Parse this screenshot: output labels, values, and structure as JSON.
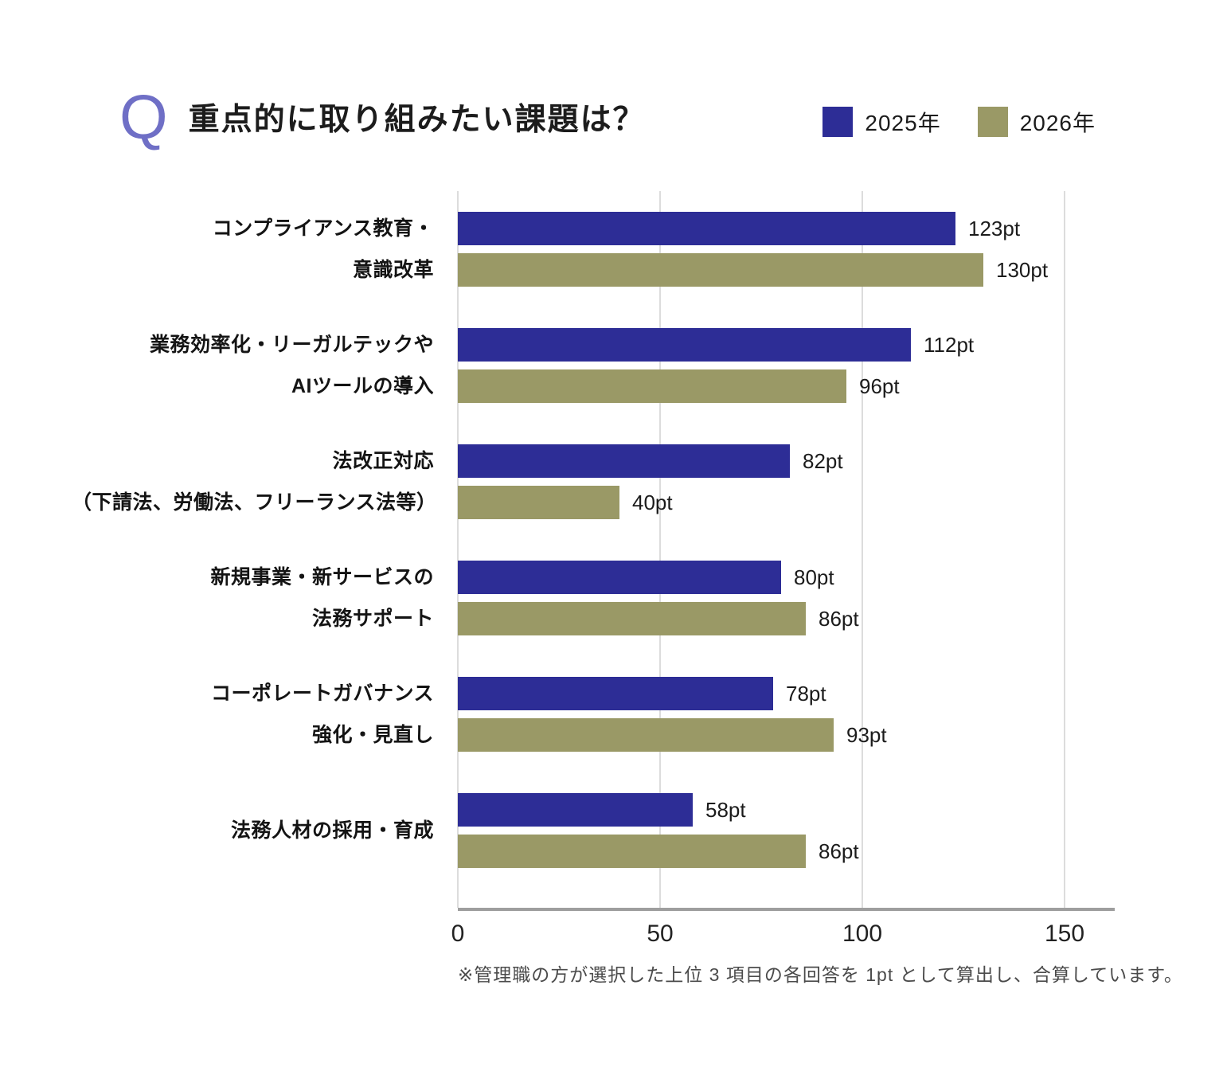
{
  "header": {
    "q_mark": "Q",
    "title": "重点的に取り組みたい課題は？"
  },
  "legend": [
    {
      "label": "2025年",
      "color": "#2D2D96"
    },
    {
      "label": "2026年",
      "color": "#9A9966"
    }
  ],
  "chart_data": {
    "type": "bar",
    "orientation": "horizontal",
    "title": "重点的に取り組みたい課題は？",
    "categories": [
      [
        "コンプライアンス教育・",
        "意識改革"
      ],
      [
        "業務効率化・リーガルテックや",
        "AIツールの導入"
      ],
      [
        "法改正対応",
        "（下請法、労働法、フリーランス法等）"
      ],
      [
        "新規事業・新サービスの",
        "法務サポート"
      ],
      [
        "コーポレートガバナンス",
        "強化・見直し"
      ],
      [
        "法務人材の採用・育成"
      ]
    ],
    "series": [
      {
        "name": "2025年",
        "color": "#2D2D96",
        "values": [
          123,
          112,
          82,
          80,
          78,
          58
        ]
      },
      {
        "name": "2026年",
        "color": "#9A9966",
        "values": [
          130,
          96,
          40,
          86,
          93,
          86
        ]
      }
    ],
    "unit": "pt",
    "xticks": [
      0,
      50,
      100,
      150
    ],
    "xmax": 162.4,
    "xlabel": "",
    "ylabel": "",
    "grid": "vertical",
    "legend_position": "top-right"
  },
  "footnote": "※管理職の方が選択した上位 3 項目の各回答を 1pt として算出し、合算しています。"
}
